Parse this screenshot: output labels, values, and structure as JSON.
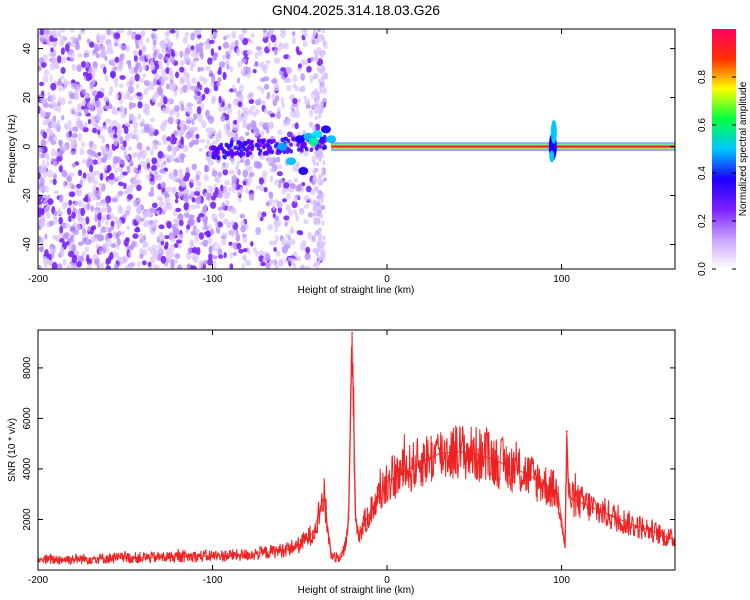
{
  "title": "GN04.2025.314.18.03.G26",
  "chart_data": [
    {
      "type": "heatmap",
      "name": "spectrogram",
      "xlabel": "Height of straight line (km)",
      "ylabel": "Frequency (Hz)",
      "xlim": [
        -200,
        165
      ],
      "ylim": [
        -50,
        48
      ],
      "xticks": [
        -200,
        -100,
        0,
        100
      ],
      "yticks": [
        -40,
        -20,
        0,
        20,
        40
      ],
      "colorbar": {
        "label": "Normalized spectral amplitude",
        "range": [
          0.0,
          1.0
        ],
        "ticks": [
          "0.0",
          "0.2",
          "0.4",
          "0.6",
          "0.8"
        ],
        "colormap": [
          "#ffffff",
          "#c8a2ff",
          "#7b1fff",
          "#1a00ff",
          "#00c8ff",
          "#00ff40",
          "#ffff00",
          "#ff3000",
          "#ff0060"
        ]
      },
      "noise_region_x": [
        -200,
        -35
      ],
      "tone_frequency_hz": 0,
      "tone_start_x": -32,
      "disturbance_x": [
        -45,
        95
      ]
    },
    {
      "type": "line",
      "name": "snr",
      "xlabel": "Height of straight line (km)",
      "ylabel": "SNR (10 * v/v)",
      "xlim": [
        -200,
        165
      ],
      "ylim": [
        0,
        9500
      ],
      "xticks": [
        -200,
        -100,
        0,
        100
      ],
      "yticks": [
        2000,
        4000,
        6000,
        8000
      ],
      "color": "#ee2222",
      "series": [
        {
          "name": "SNR",
          "x": [
            -200,
            -180,
            -150,
            -120,
            -100,
            -80,
            -60,
            -50,
            -42,
            -38,
            -36,
            -34,
            -32,
            -28,
            -24,
            -22,
            -20,
            -18,
            -16,
            -12,
            -8,
            -4,
            0,
            10,
            20,
            30,
            40,
            50,
            60,
            70,
            80,
            90,
            95,
            98,
            100,
            102,
            103,
            104,
            106,
            110,
            120,
            130,
            140,
            150,
            160,
            165
          ],
          "y": [
            400,
            430,
            480,
            520,
            560,
            600,
            780,
            1000,
            1500,
            2500,
            2900,
            1600,
            600,
            500,
            900,
            2000,
            9400,
            2000,
            1400,
            2000,
            2500,
            3000,
            3500,
            3900,
            4300,
            4600,
            4700,
            4600,
            4400,
            4100,
            3800,
            3400,
            3200,
            3000,
            2000,
            900,
            5500,
            3000,
            2800,
            2700,
            2400,
            2100,
            1800,
            1600,
            1300,
            1200
          ]
        }
      ]
    }
  ]
}
